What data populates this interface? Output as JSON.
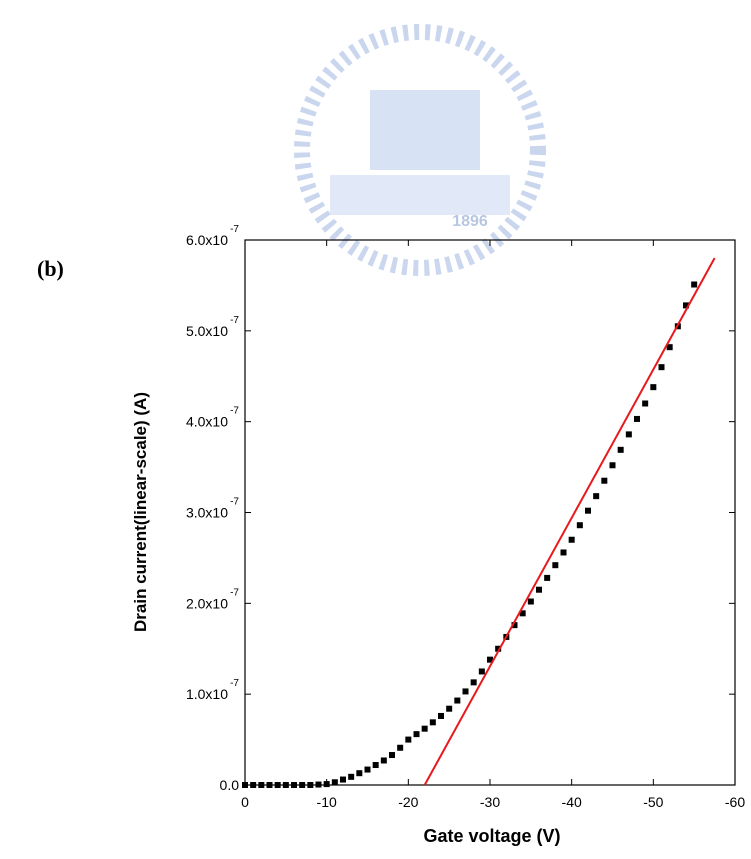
{
  "panel_label": "(b)",
  "logo": {
    "text": "1896"
  },
  "chart_data": {
    "type": "scatter",
    "xlabel": "Gate voltage (V)",
    "ylabel": "Drain current(linear-scale) (A)",
    "xlim": [
      0,
      -60
    ],
    "ylim": [
      0,
      6e-07
    ],
    "xticks": [
      0,
      -10,
      -20,
      -30,
      -40,
      -50,
      -60
    ],
    "yticks": [
      {
        "value": 0,
        "label": "0.0"
      },
      {
        "value": 1e-07,
        "label": "1.0x10",
        "exponent": "-7"
      },
      {
        "value": 2e-07,
        "label": "2.0x10",
        "exponent": "-7"
      },
      {
        "value": 3e-07,
        "label": "3.0x10",
        "exponent": "-7"
      },
      {
        "value": 4e-07,
        "label": "4.0x10",
        "exponent": "-7"
      },
      {
        "value": 5e-07,
        "label": "5.0x10",
        "exponent": "-7"
      },
      {
        "value": 6e-07,
        "label": "6.0x10",
        "exponent": "-7"
      }
    ],
    "series": [
      {
        "style": "marker",
        "color": "#000000",
        "x": [
          0,
          -1,
          -2,
          -3,
          -4,
          -5,
          -6,
          -7,
          -8,
          -9,
          -10,
          -11,
          -12,
          -13,
          -14,
          -15,
          -16,
          -17,
          -18,
          -19,
          -20,
          -21,
          -22,
          -23,
          -24,
          -25,
          -26,
          -27,
          -28,
          -29,
          -30,
          -31,
          -32,
          -33,
          -34,
          -35,
          -36,
          -37,
          -38,
          -39,
          -40,
          -41,
          -42,
          -43,
          -44,
          -45,
          -46,
          -47,
          -48,
          -49,
          -50,
          -51,
          -52,
          -53,
          -54,
          -55
        ],
        "values": [
          0,
          0,
          0,
          0,
          0,
          0,
          0,
          0,
          0,
          5e-10,
          1e-09,
          3e-09,
          6e-09,
          9e-09,
          1.3e-08,
          1.7e-08,
          2.2e-08,
          2.7e-08,
          3.3e-08,
          4.1e-08,
          5e-08,
          5.6e-08,
          6.2e-08,
          6.9e-08,
          7.6e-08,
          8.4e-08,
          9.3e-08,
          1.03e-07,
          1.13e-07,
          1.25e-07,
          1.38e-07,
          1.5e-07,
          1.63e-07,
          1.76e-07,
          1.89e-07,
          2.02e-07,
          2.15e-07,
          2.28e-07,
          2.42e-07,
          2.56e-07,
          2.7e-07,
          2.86e-07,
          3.02e-07,
          3.18e-07,
          3.35e-07,
          3.52e-07,
          3.69e-07,
          3.86e-07,
          4.03e-07,
          4.2e-07,
          4.38e-07,
          4.6e-07,
          4.82e-07,
          5.05e-07,
          5.28e-07,
          5.51e-07
        ]
      },
      {
        "style": "line",
        "color": "#e8191c",
        "x": [
          -22,
          -57.5
        ],
        "values": [
          0,
          5.8e-07
        ]
      }
    ]
  }
}
